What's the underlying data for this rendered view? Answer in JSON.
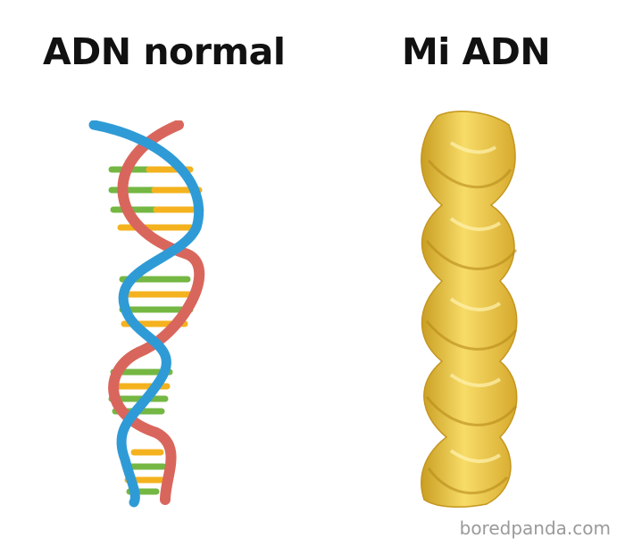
{
  "labels": {
    "left": "ADN normal",
    "right": "Mi ADN"
  },
  "watermark": "boredpanda.com",
  "images": {
    "left": "dna-double-helix",
    "right": "fusilli-pasta-spiral"
  },
  "colors": {
    "strand_red": "#d9665c",
    "strand_blue": "#2f9bd6",
    "base_green": "#74b743",
    "base_yellow": "#f4b21e",
    "pasta_light": "#f7dc68",
    "pasta_dark": "#c99e22",
    "background": "#ffffff"
  }
}
